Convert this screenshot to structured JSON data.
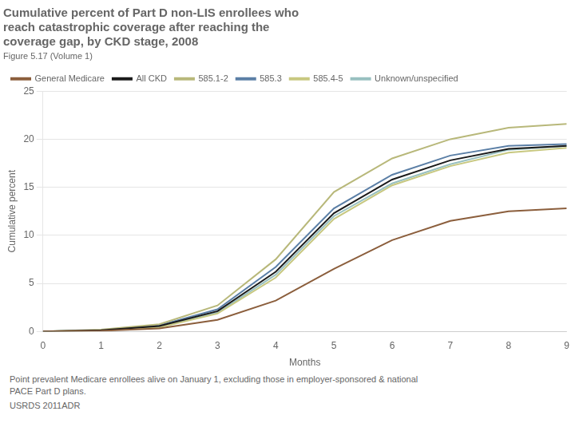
{
  "chart_data": {
    "type": "line",
    "title": "Cumulative percent of Part D non-LIS enrollees who\nreach catastrophic coverage after reaching the\ncoverage gap, by CKD stage, 2008",
    "subtitle": "Figure 5.17 (Volume 1)",
    "x_label": "Months",
    "y_label": "Cumulative percent",
    "annotations": [
      "Point prevalent Medicare enrollees alive on January 1, excluding those in employer-sponsored & national\nPACE Part D plans.",
      "USRDS 2011ADR"
    ],
    "x": [
      0,
      1,
      2,
      3,
      4,
      5,
      6,
      7,
      8,
      9
    ],
    "series": [
      {
        "name": "General Medicare",
        "color": "#8B5E3C",
        "values": [
          0.0,
          0.05,
          0.3,
          1.2,
          3.2,
          6.5,
          9.5,
          11.5,
          12.5,
          12.8
        ]
      },
      {
        "name": "All CKD",
        "color": "#1a1a1a",
        "values": [
          0.0,
          0.12,
          0.55,
          2.1,
          6.2,
          12.3,
          15.8,
          17.8,
          19.0,
          19.3
        ]
      },
      {
        "name": "585.1-2",
        "color": "#b8b87a",
        "values": [
          0.0,
          0.18,
          0.75,
          2.7,
          7.5,
          14.5,
          18.0,
          20.0,
          21.2,
          21.6
        ]
      },
      {
        "name": "585.3",
        "color": "#5b7fa6",
        "values": [
          0.0,
          0.13,
          0.62,
          2.3,
          6.7,
          12.8,
          16.3,
          18.3,
          19.3,
          19.5
        ]
      },
      {
        "name": "585.4-5",
        "color": "#c8c880",
        "values": [
          0.0,
          0.11,
          0.42,
          1.85,
          5.6,
          11.7,
          15.2,
          17.2,
          18.6,
          19.1
        ]
      },
      {
        "name": "Unknown/unspecified",
        "color": "#98c0c0",
        "values": [
          0.0,
          0.11,
          0.47,
          1.95,
          5.9,
          12.0,
          15.4,
          17.4,
          18.9,
          19.3
        ]
      }
    ],
    "xlim": [
      0,
      9
    ],
    "xticks": [
      0,
      1,
      2,
      3,
      4,
      5,
      6,
      7,
      8,
      9
    ],
    "ylim": [
      0,
      25
    ],
    "yticks": [
      0,
      5,
      10,
      15,
      20,
      25
    ],
    "grid": "y",
    "legend": "top"
  }
}
